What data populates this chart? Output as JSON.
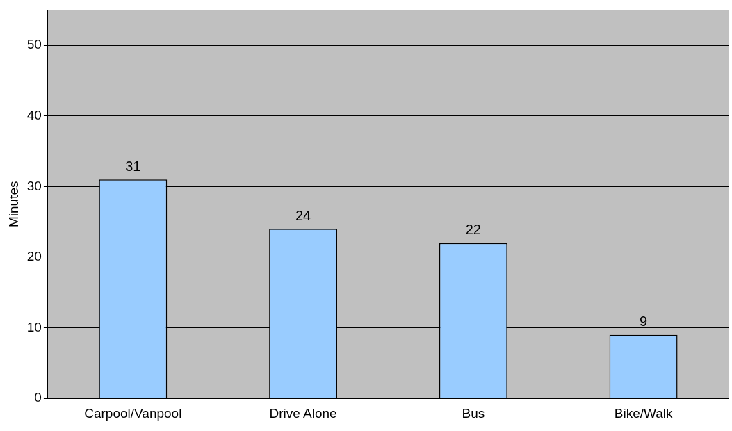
{
  "chart_data": {
    "type": "bar",
    "ylabel": "Minutes",
    "categories": [
      "Carpool/Vanpool",
      "Drive Alone",
      "Bus",
      "Bike/Walk"
    ],
    "values": [
      31,
      24,
      22,
      9
    ],
    "color": "#99ccff",
    "ylim": [
      0,
      55
    ],
    "yticks": [
      0,
      10,
      20,
      30,
      40,
      50
    ],
    "grid": "y",
    "legend": false,
    "data_labels": true
  }
}
